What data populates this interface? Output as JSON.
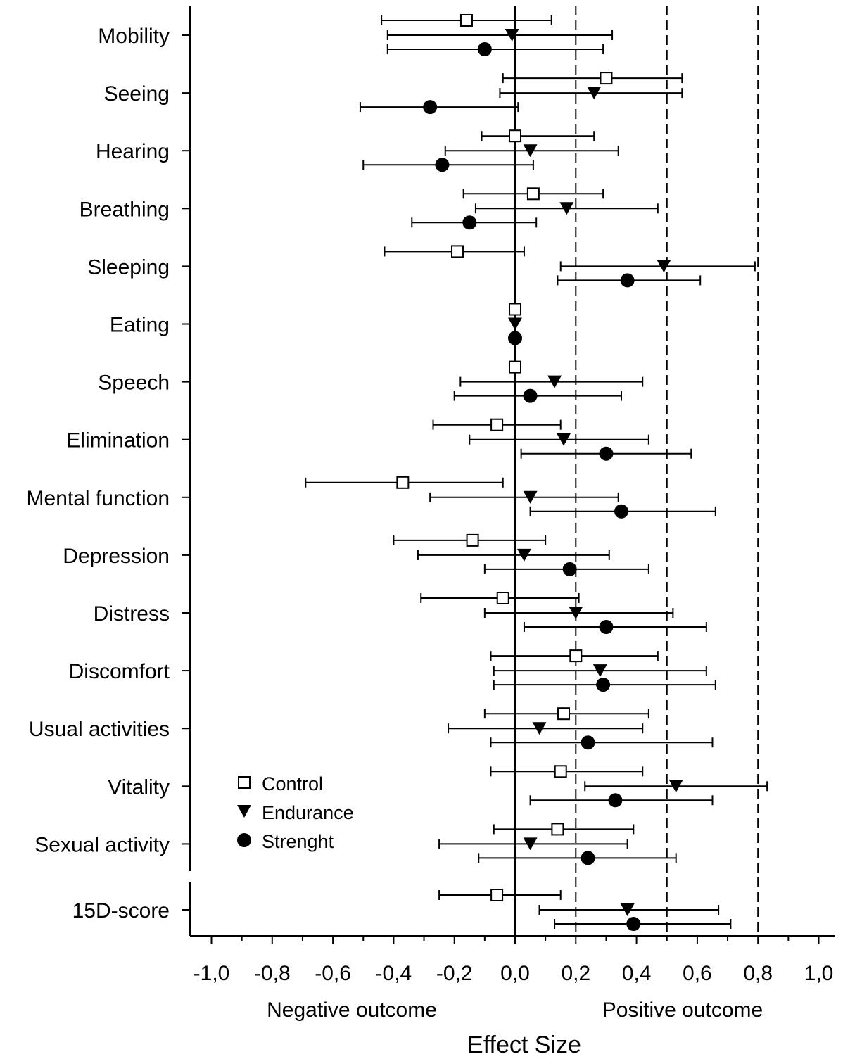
{
  "chart_data": {
    "type": "scatter",
    "subtype": "forest-plot",
    "title": "",
    "xlabel": "Effect Size",
    "xlim": [
      -1.0,
      1.0
    ],
    "x_ticks": [
      -1.0,
      -0.8,
      -0.6,
      -0.4,
      -0.2,
      0.0,
      0.2,
      0.4,
      0.6,
      0.8,
      1.0
    ],
    "x_tick_labels": [
      "-1,0",
      "-0,8",
      "-0,6",
      "-0,4",
      "-0,2",
      "0,0",
      "0,2",
      "0,4",
      "0,6",
      "0,8",
      "1,0"
    ],
    "reference_lines": {
      "solid": [
        0.0
      ],
      "dashed": [
        0.2,
        0.5,
        0.8
      ]
    },
    "outcome_labels": {
      "negative": "Negative outcome",
      "positive": "Positive outcome"
    },
    "legend_position": "lower-left",
    "categories": [
      "Mobility",
      "Seeing",
      "Hearing",
      "Breathing",
      "Sleeping",
      "Eating",
      "Speech",
      "Elimination",
      "Mental function",
      "Depression",
      "Distress",
      "Discomfort",
      "Usual activities",
      "Vitality",
      "Sexual activity",
      "15D-score"
    ],
    "series": [
      {
        "name": "Control",
        "marker": "open-square",
        "color": "#000000",
        "points": [
          {
            "x": -0.16,
            "lo": -0.44,
            "hi": 0.12
          },
          {
            "x": 0.3,
            "lo": -0.04,
            "hi": 0.55
          },
          {
            "x": 0.0,
            "lo": -0.11,
            "hi": 0.26
          },
          {
            "x": 0.06,
            "lo": -0.17,
            "hi": 0.29
          },
          {
            "x": -0.19,
            "lo": -0.43,
            "hi": 0.03
          },
          {
            "x": 0.0,
            "lo": null,
            "hi": null
          },
          {
            "x": 0.0,
            "lo": null,
            "hi": null
          },
          {
            "x": -0.06,
            "lo": -0.27,
            "hi": 0.15
          },
          {
            "x": -0.37,
            "lo": -0.69,
            "hi": -0.04
          },
          {
            "x": -0.14,
            "lo": -0.4,
            "hi": 0.1
          },
          {
            "x": -0.04,
            "lo": -0.31,
            "hi": 0.21
          },
          {
            "x": 0.2,
            "lo": -0.08,
            "hi": 0.47
          },
          {
            "x": 0.16,
            "lo": -0.1,
            "hi": 0.44
          },
          {
            "x": 0.15,
            "lo": -0.08,
            "hi": 0.42
          },
          {
            "x": 0.14,
            "lo": -0.07,
            "hi": 0.39
          },
          {
            "x": -0.06,
            "lo": -0.25,
            "hi": 0.15
          }
        ]
      },
      {
        "name": "Endurance",
        "marker": "filled-down-triangle",
        "color": "#000000",
        "points": [
          {
            "x": -0.01,
            "lo": -0.42,
            "hi": 0.32
          },
          {
            "x": 0.26,
            "lo": -0.05,
            "hi": 0.55
          },
          {
            "x": 0.05,
            "lo": -0.23,
            "hi": 0.34
          },
          {
            "x": 0.17,
            "lo": -0.13,
            "hi": 0.47
          },
          {
            "x": 0.49,
            "lo": 0.15,
            "hi": 0.79
          },
          {
            "x": 0.0,
            "lo": null,
            "hi": null
          },
          {
            "x": 0.13,
            "lo": -0.18,
            "hi": 0.42
          },
          {
            "x": 0.16,
            "lo": -0.15,
            "hi": 0.44
          },
          {
            "x": 0.05,
            "lo": -0.28,
            "hi": 0.34
          },
          {
            "x": 0.03,
            "lo": -0.32,
            "hi": 0.31
          },
          {
            "x": 0.2,
            "lo": -0.1,
            "hi": 0.52
          },
          {
            "x": 0.28,
            "lo": -0.07,
            "hi": 0.63
          },
          {
            "x": 0.08,
            "lo": -0.22,
            "hi": 0.42
          },
          {
            "x": 0.53,
            "lo": 0.23,
            "hi": 0.83
          },
          {
            "x": 0.05,
            "lo": -0.25,
            "hi": 0.37
          },
          {
            "x": 0.37,
            "lo": 0.08,
            "hi": 0.67
          }
        ]
      },
      {
        "name": "Strenght",
        "marker": "filled-circle",
        "color": "#000000",
        "points": [
          {
            "x": -0.1,
            "lo": -0.42,
            "hi": 0.29
          },
          {
            "x": -0.28,
            "lo": -0.51,
            "hi": 0.01
          },
          {
            "x": -0.24,
            "lo": -0.5,
            "hi": 0.06
          },
          {
            "x": -0.15,
            "lo": -0.34,
            "hi": 0.07
          },
          {
            "x": 0.37,
            "lo": 0.14,
            "hi": 0.61
          },
          {
            "x": 0.0,
            "lo": null,
            "hi": null
          },
          {
            "x": 0.05,
            "lo": -0.2,
            "hi": 0.35
          },
          {
            "x": 0.3,
            "lo": 0.02,
            "hi": 0.58
          },
          {
            "x": 0.35,
            "lo": 0.05,
            "hi": 0.66
          },
          {
            "x": 0.18,
            "lo": -0.1,
            "hi": 0.44
          },
          {
            "x": 0.3,
            "lo": 0.03,
            "hi": 0.63
          },
          {
            "x": 0.29,
            "lo": -0.07,
            "hi": 0.66
          },
          {
            "x": 0.24,
            "lo": -0.08,
            "hi": 0.65
          },
          {
            "x": 0.33,
            "lo": 0.05,
            "hi": 0.65
          },
          {
            "x": 0.24,
            "lo": -0.12,
            "hi": 0.53
          },
          {
            "x": 0.39,
            "lo": 0.13,
            "hi": 0.71
          }
        ]
      }
    ]
  }
}
